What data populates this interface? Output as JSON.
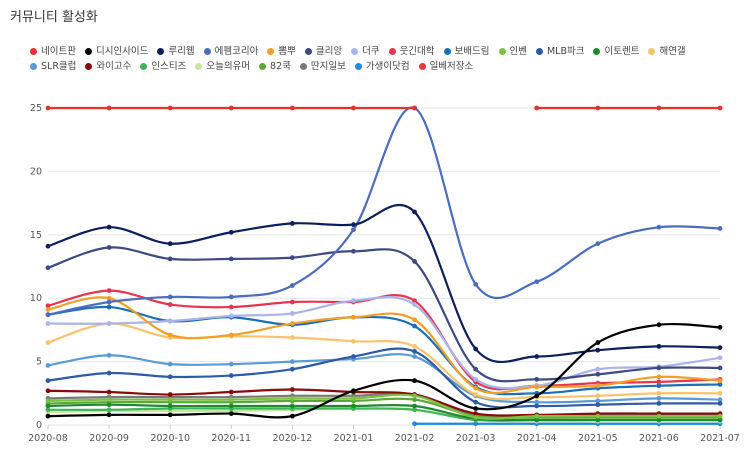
{
  "title": "커뮤니티 활성화",
  "chart_data": {
    "type": "line",
    "title": "커뮤니티 활성화",
    "xlabel": "",
    "ylabel": "",
    "ylim": [
      0,
      25
    ],
    "yticks": [
      0,
      5,
      10,
      15,
      20,
      25
    ],
    "grid": true,
    "legend_position": "top",
    "categories": [
      "2020-08",
      "2020-09",
      "2020-10",
      "2020-11",
      "2020-12",
      "2021-01",
      "2021-02",
      "2021-03",
      "2021-04",
      "2021-05",
      "2021-06",
      "2021-07"
    ],
    "series": [
      {
        "name": "네이트판",
        "color": "#e8312f",
        "values": [
          25,
          25,
          25,
          25,
          25,
          25,
          25,
          null,
          25,
          25,
          25,
          25
        ]
      },
      {
        "name": "디시인사이드",
        "color": "#000000",
        "values": [
          0.7,
          0.8,
          0.8,
          0.9,
          0.7,
          2.7,
          3.5,
          1.3,
          2.3,
          6.5,
          7.9,
          7.7
        ]
      },
      {
        "name": "루리웹",
        "color": "#0c1f5c",
        "values": [
          14.1,
          15.6,
          14.3,
          15.2,
          15.9,
          15.8,
          16.8,
          6.0,
          5.4,
          5.9,
          6.2,
          6.1
        ]
      },
      {
        "name": "에펨코리아",
        "color": "#4a6cc1",
        "values": [
          8.7,
          9.7,
          10.1,
          10.1,
          11.0,
          15.4,
          25,
          11.1,
          11.3,
          14.3,
          15.6,
          15.5
        ]
      },
      {
        "name": "뽐뿌",
        "color": "#f29f26",
        "values": [
          9.1,
          10.0,
          7.1,
          7.1,
          8.0,
          8.5,
          8.3,
          2.9,
          3.0,
          3.1,
          3.8,
          3.5
        ]
      },
      {
        "name": "클리앙",
        "color": "#3d4b82",
        "values": [
          12.4,
          14.0,
          13.1,
          13.1,
          13.2,
          13.7,
          12.9,
          4.4,
          3.6,
          4.0,
          4.5,
          4.5
        ]
      },
      {
        "name": "더쿠",
        "color": "#aab4ea",
        "values": [
          8.0,
          8.0,
          8.2,
          8.6,
          8.8,
          9.8,
          9.5,
          3.6,
          3.1,
          4.4,
          4.6,
          5.3
        ]
      },
      {
        "name": "웃긴대학",
        "color": "#e8354f",
        "values": [
          9.4,
          10.6,
          9.5,
          9.3,
          9.7,
          9.7,
          9.8,
          3.4,
          3.1,
          3.3,
          3.4,
          3.6
        ]
      },
      {
        "name": "보배드림",
        "color": "#1a6fb8",
        "values": [
          8.7,
          9.3,
          8.2,
          8.5,
          7.9,
          8.5,
          7.8,
          3.0,
          2.5,
          2.9,
          3.1,
          3.2
        ]
      },
      {
        "name": "인벤",
        "color": "#7dc142",
        "values": [
          1.9,
          2.0,
          2.0,
          2.0,
          2.1,
          2.1,
          2.3,
          0.6,
          0.7,
          0.7,
          0.7,
          0.7
        ]
      },
      {
        "name": "MLB파크",
        "color": "#2e5aa8",
        "values": [
          3.5,
          4.1,
          3.8,
          3.9,
          4.4,
          5.4,
          5.8,
          1.8,
          1.5,
          1.6,
          1.7,
          1.7
        ]
      },
      {
        "name": "이토렌트",
        "color": "#1f8a2a",
        "values": [
          1.5,
          1.6,
          1.5,
          1.5,
          1.5,
          1.5,
          1.5,
          0.5,
          0.4,
          0.4,
          0.4,
          0.4
        ]
      },
      {
        "name": "해연갤",
        "color": "#f7c36b",
        "values": [
          6.5,
          8.0,
          6.9,
          7.0,
          6.9,
          6.6,
          6.2,
          2.4,
          2.2,
          2.3,
          2.5,
          2.5
        ]
      },
      {
        "name": "SLR클럽",
        "color": "#5b9bd5",
        "values": [
          4.7,
          5.5,
          4.8,
          4.8,
          5.0,
          5.2,
          5.4,
          2.3,
          1.8,
          1.9,
          2.1,
          2.0
        ]
      },
      {
        "name": "와이고수",
        "color": "#8b0a0a",
        "values": [
          2.7,
          2.6,
          2.4,
          2.6,
          2.8,
          2.6,
          2.4,
          0.9,
          0.8,
          0.9,
          0.9,
          0.9
        ]
      },
      {
        "name": "인스티즈",
        "color": "#3fb55a",
        "values": [
          1.2,
          1.2,
          1.3,
          1.3,
          1.3,
          1.3,
          1.2,
          0.4,
          0.4,
          0.4,
          0.4,
          0.4
        ]
      },
      {
        "name": "오늘의유머",
        "color": "#c8e6a0",
        "values": [
          1.0,
          1.1,
          1.1,
          1.1,
          1.2,
          1.3,
          1.2,
          0.4,
          0.3,
          0.3,
          0.3,
          0.3
        ]
      },
      {
        "name": "82쿡",
        "color": "#5aa83a",
        "values": [
          1.7,
          1.8,
          1.8,
          1.8,
          1.9,
          1.9,
          2.0,
          0.7,
          0.6,
          0.6,
          0.6,
          0.6
        ]
      },
      {
        "name": "딴지일보",
        "color": "#7a7a7a",
        "values": [
          2.1,
          2.2,
          2.2,
          2.2,
          2.3,
          2.3,
          2.4,
          0.8,
          0.7,
          0.8,
          0.8,
          0.8
        ]
      },
      {
        "name": "가생이닷컴",
        "color": "#1e88e5",
        "values": [
          null,
          null,
          null,
          null,
          null,
          null,
          0.1,
          0.1,
          0.1,
          0.1,
          0.1,
          0.1
        ]
      },
      {
        "name": "일베저장소",
        "color": "#e53935",
        "values": [
          null,
          null,
          null,
          null,
          null,
          null,
          null,
          null,
          null,
          null,
          null,
          null
        ]
      }
    ]
  }
}
